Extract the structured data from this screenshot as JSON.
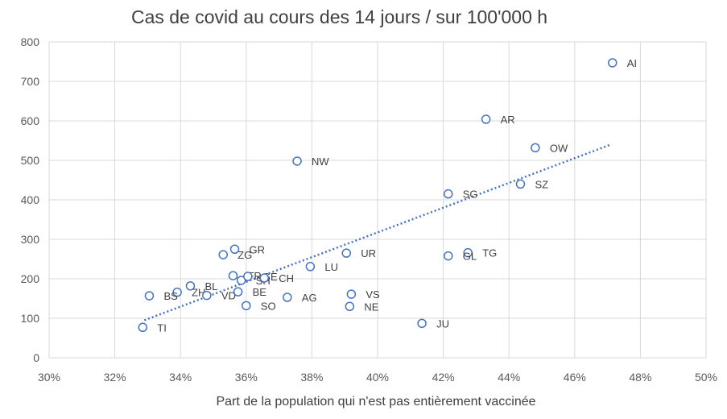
{
  "chart_data": {
    "type": "scatter",
    "title": "Cas de covid au cours des 14 jours / sur 100'000 h",
    "xlabel": "Part de la population qui n'est pas entièrement vaccinée",
    "ylabel": "",
    "xlim": [
      0.3,
      0.5
    ],
    "ylim": [
      0,
      800
    ],
    "xticks": [
      0.3,
      0.32,
      0.34,
      0.36,
      0.38,
      0.4,
      0.42,
      0.44,
      0.46,
      0.48,
      0.5
    ],
    "xtick_labels": [
      "30%",
      "32%",
      "34%",
      "36%",
      "38%",
      "40%",
      "42%",
      "44%",
      "46%",
      "48%",
      "50%"
    ],
    "yticks": [
      0,
      100,
      200,
      300,
      400,
      500,
      600,
      700,
      800
    ],
    "ytick_labels": [
      "0",
      "100",
      "200",
      "300",
      "400",
      "500",
      "600",
      "700",
      "800"
    ],
    "grid": true,
    "legend": false,
    "marker_color": "#4472C4",
    "trendline": {
      "type": "linear",
      "style": "dotted",
      "color": "#4472C4",
      "x_range": [
        0.329,
        0.471
      ],
      "y_range": [
        95,
        540
      ]
    },
    "points": [
      {
        "label": "AI",
        "x": 0.4715,
        "y": 747
      },
      {
        "label": "AR",
        "x": 0.433,
        "y": 604
      },
      {
        "label": "OW",
        "x": 0.448,
        "y": 532
      },
      {
        "label": "NW",
        "x": 0.3755,
        "y": 498
      },
      {
        "label": "SZ",
        "x": 0.4435,
        "y": 440
      },
      {
        "label": "SG",
        "x": 0.4215,
        "y": 415
      },
      {
        "label": "GR",
        "x": 0.3565,
        "y": 275
      },
      {
        "label": "ZG",
        "x": 0.353,
        "y": 261
      },
      {
        "label": "TG",
        "x": 0.4275,
        "y": 266
      },
      {
        "label": "GL",
        "x": 0.4215,
        "y": 258
      },
      {
        "label": "UR",
        "x": 0.3905,
        "y": 265
      },
      {
        "label": "LU",
        "x": 0.3795,
        "y": 231
      },
      {
        "label": "FR",
        "x": 0.356,
        "y": 208
      },
      {
        "label": "SH",
        "x": 0.3585,
        "y": 196
      },
      {
        "label": "GE",
        "x": 0.3605,
        "y": 206
      },
      {
        "label": "CH",
        "x": 0.3655,
        "y": 202
      },
      {
        "label": "BL",
        "x": 0.343,
        "y": 182
      },
      {
        "label": "ZH",
        "x": 0.339,
        "y": 166
      },
      {
        "label": "BS",
        "x": 0.3305,
        "y": 157
      },
      {
        "label": "VD",
        "x": 0.348,
        "y": 158
      },
      {
        "label": "BE",
        "x": 0.3575,
        "y": 167
      },
      {
        "label": "VS",
        "x": 0.392,
        "y": 161
      },
      {
        "label": "AG",
        "x": 0.3725,
        "y": 153
      },
      {
        "label": "SO",
        "x": 0.36,
        "y": 132
      },
      {
        "label": "NE",
        "x": 0.3915,
        "y": 130
      },
      {
        "label": "JU",
        "x": 0.4135,
        "y": 87
      },
      {
        "label": "TI",
        "x": 0.3285,
        "y": 77
      }
    ]
  }
}
